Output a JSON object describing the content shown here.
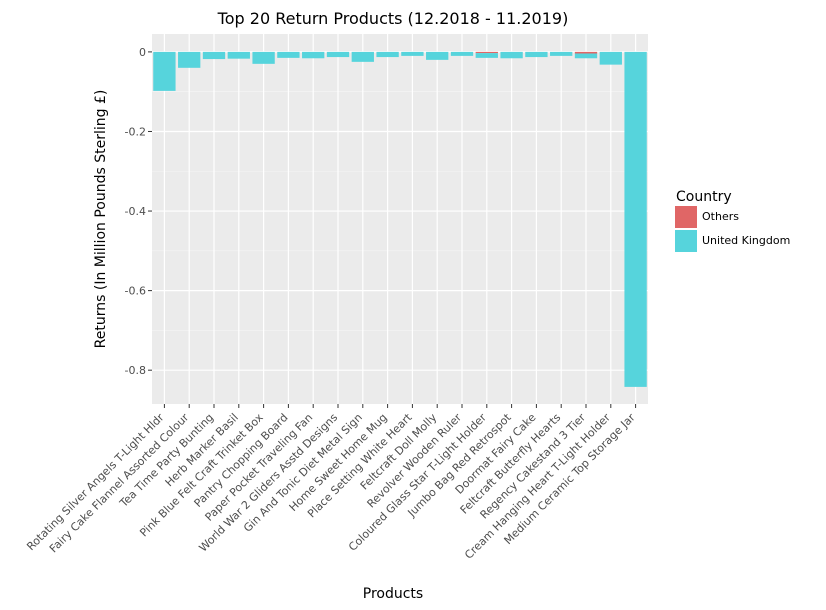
{
  "chart_data": {
    "type": "bar",
    "title": "Top 20 Return Products (12.2018 - 11.2019)",
    "xlabel": "Products",
    "ylabel": "Returns (In Million Pounds Sterling £)",
    "ylim": [
      -0.885,
      0.045
    ],
    "yticks": [
      0,
      -0.2,
      -0.4,
      -0.6,
      -0.8
    ],
    "stacked": true,
    "grid": true,
    "legend_position": "right",
    "legend_title": "Country",
    "categories": [
      "Rotating Silver Angels T-Light Hldr",
      "Fairy Cake Flannel Assorted Colour",
      "Tea Time Party Bunting",
      "Herb Marker Basil",
      "Pink Blue Felt Craft Trinket Box",
      "Pantry Chopping Board",
      "Paper Pocket Traveling Fan",
      "World War 2 Gliders Asstd Designs",
      "Gin And Tonic Diet Metal Sign",
      "Home Sweet Home Mug",
      "Place Setting White Heart",
      "Feltcraft Doll Molly",
      "Revolver Wooden Ruler",
      "Coloured Glass Star T-Light Holder",
      "Jumbo Bag Red Retrospot",
      "Doormat Fairy Cake",
      "Feltcraft Butterfly Hearts",
      "Regency Cakestand 3 Tier",
      "Cream Hanging Heart T-Light Holder",
      "Medium Ceramic Top Storage Jar"
    ],
    "series": [
      {
        "name": "Others",
        "color": "#e06666",
        "values": [
          0,
          0,
          0,
          0,
          0,
          0,
          0,
          0,
          0,
          0,
          0,
          0,
          0,
          -0.003,
          0,
          0,
          0,
          -0.004,
          0,
          0
        ]
      },
      {
        "name": "United Kingdom",
        "color": "#56d4dc",
        "values": [
          -0.098,
          -0.04,
          -0.018,
          -0.017,
          -0.03,
          -0.015,
          -0.016,
          -0.013,
          -0.025,
          -0.013,
          -0.01,
          -0.02,
          -0.01,
          -0.012,
          -0.016,
          -0.013,
          -0.01,
          -0.012,
          -0.032,
          -0.842
        ]
      }
    ]
  }
}
